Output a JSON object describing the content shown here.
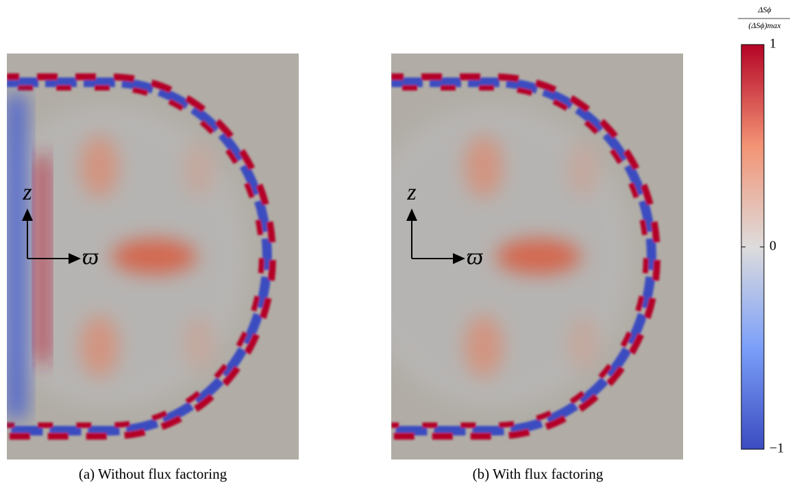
{
  "panels": [
    {
      "caption": "(a) Without flux factoring",
      "axis_labels": {
        "vertical": "z",
        "horizontal": "ϖ"
      }
    },
    {
      "caption": "(b) With flux factoring",
      "axis_labels": {
        "vertical": "z",
        "horizontal": "ϖ"
      }
    }
  ],
  "colorbar": {
    "label": {
      "numerator": "ΔSϕ",
      "denominator": "(ΔSϕ)max"
    },
    "lim": [
      -1,
      1
    ],
    "ticks": [
      1,
      0,
      {
        "value": -1,
        "label": "−1"
      }
    ]
  }
}
